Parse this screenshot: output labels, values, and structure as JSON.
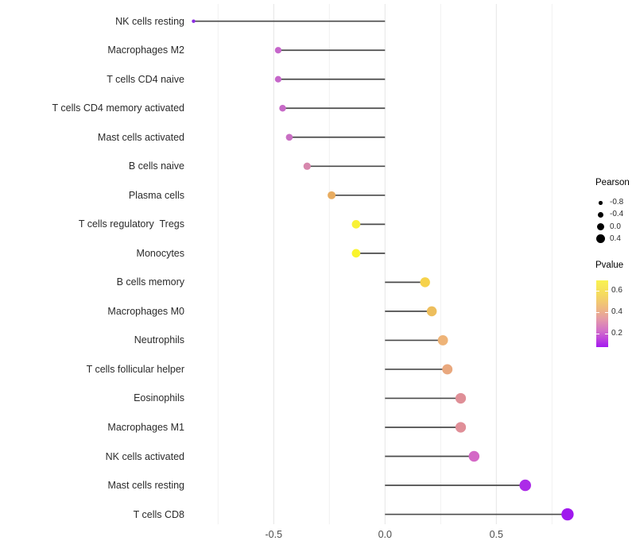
{
  "chart_data": {
    "type": "scatter",
    "subtype": "lollipop",
    "title": "",
    "xlabel": "",
    "ylabel": "",
    "xlim": [
      -0.88,
      0.88
    ],
    "grid": "vertical-only",
    "legend_position": "right",
    "x_tick_labels": [
      "-0.5",
      "0.0",
      "0.5"
    ],
    "x_major_ticks": [
      -0.5,
      0.0,
      0.5
    ],
    "x_minor_gridlines": [
      -0.75,
      -0.25,
      0.25,
      0.75
    ],
    "points": [
      {
        "category": "NK cells resting",
        "pearson": -0.86,
        "pvalue_approx": 0.03,
        "color": "#8B2BE2"
      },
      {
        "category": "Macrophages M2",
        "pearson": -0.48,
        "pvalue_approx": 0.22,
        "color": "#C666CB"
      },
      {
        "category": "T cells CD4 naive",
        "pearson": -0.48,
        "pvalue_approx": 0.22,
        "color": "#C667CA"
      },
      {
        "category": "T cells CD4 memory activated",
        "pearson": -0.46,
        "pvalue_approx": 0.23,
        "color": "#C76AC7"
      },
      {
        "category": "Mast cells activated",
        "pearson": -0.43,
        "pvalue_approx": 0.25,
        "color": "#C96FC3"
      },
      {
        "category": "B cells naive",
        "pearson": -0.35,
        "pvalue_approx": 0.33,
        "color": "#D787AD"
      },
      {
        "category": "Plasma cells",
        "pearson": -0.24,
        "pvalue_approx": 0.48,
        "color": "#E8AC60"
      },
      {
        "category": "T cells regulatory  Tregs",
        "pearson": -0.13,
        "pvalue_approx": 0.7,
        "color": "#F8F136"
      },
      {
        "category": "Monocytes",
        "pearson": -0.13,
        "pvalue_approx": 0.72,
        "color": "#F9F42C"
      },
      {
        "category": "B cells memory",
        "pearson": 0.18,
        "pvalue_approx": 0.6,
        "color": "#F6D24B"
      },
      {
        "category": "Macrophages M0",
        "pearson": 0.21,
        "pvalue_approx": 0.52,
        "color": "#EDBE5D"
      },
      {
        "category": "Neutrophils",
        "pearson": 0.26,
        "pvalue_approx": 0.46,
        "color": "#EEB377"
      },
      {
        "category": "T cells follicular helper",
        "pearson": 0.28,
        "pvalue_approx": 0.43,
        "color": "#E9A87E"
      },
      {
        "category": "Eosinophils",
        "pearson": 0.34,
        "pvalue_approx": 0.36,
        "color": "#DF8F97"
      },
      {
        "category": "Macrophages M1",
        "pearson": 0.34,
        "pvalue_approx": 0.36,
        "color": "#E08F98"
      },
      {
        "category": "NK cells activated",
        "pearson": 0.4,
        "pvalue_approx": 0.22,
        "color": "#D468C6"
      },
      {
        "category": "Mast cells resting",
        "pearson": 0.63,
        "pvalue_approx": 0.08,
        "color": "#AC2BE8"
      },
      {
        "category": "T cells CD8",
        "pearson": 0.82,
        "pvalue_approx": 0.04,
        "color": "#A019EE"
      }
    ],
    "legend": {
      "size_legend": {
        "title": "Pearson",
        "dot_color": "#000000",
        "entries": [
          {
            "label": "-0.8",
            "value": -0.8
          },
          {
            "label": "-0.4",
            "value": -0.4
          },
          {
            "label": "0.0",
            "value": 0.0
          },
          {
            "label": "0.4",
            "value": 0.4
          }
        ]
      },
      "color_legend": {
        "title": "Pvalue",
        "range": [
          0.07,
          0.7
        ],
        "tick_labels": [
          "0.6",
          "0.4",
          "0.2"
        ],
        "tick_values": [
          0.6,
          0.4,
          0.2
        ],
        "gradient_stops": [
          {
            "color": "#F9F351",
            "pos": 0
          },
          {
            "color": "#F5D960",
            "pos": 22
          },
          {
            "color": "#EFB981",
            "pos": 42
          },
          {
            "color": "#E396AC",
            "pos": 60
          },
          {
            "color": "#D26FC9",
            "pos": 76
          },
          {
            "color": "#BC40DF",
            "pos": 89
          },
          {
            "color": "#A31AEF",
            "pos": 100
          }
        ]
      }
    },
    "colors": {
      "background": "#FFFFFF",
      "stem": "#4A4A4A",
      "grid_major": "#E4E4E4",
      "grid_minor": "#F0F0F0",
      "axis_text": "#4D4D4D"
    }
  }
}
